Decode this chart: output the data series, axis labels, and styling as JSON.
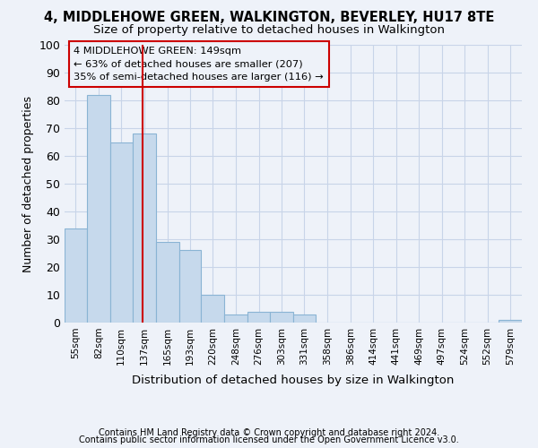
{
  "title": "4, MIDDLEHOWE GREEN, WALKINGTON, BEVERLEY, HU17 8TE",
  "subtitle": "Size of property relative to detached houses in Walkington",
  "xlabel": "Distribution of detached houses by size in Walkington",
  "ylabel": "Number of detached properties",
  "footer_line1": "Contains HM Land Registry data © Crown copyright and database right 2024.",
  "footer_line2": "Contains public sector information licensed under the Open Government Licence v3.0.",
  "bar_edges": [
    55,
    82,
    110,
    137,
    165,
    193,
    220,
    248,
    276,
    303,
    331,
    358,
    386,
    414,
    441,
    469,
    497,
    524,
    552,
    579,
    607
  ],
  "bar_heights": [
    34,
    82,
    65,
    68,
    29,
    26,
    10,
    3,
    4,
    4,
    3,
    0,
    0,
    0,
    0,
    0,
    0,
    0,
    0,
    1,
    0
  ],
  "bar_color": "#c6d9ec",
  "bar_edge_color": "#8ab4d4",
  "grid_color": "#c8d4e8",
  "vline_x": 149,
  "vline_color": "#cc0000",
  "annotation_line1": "4 MIDDLEHOWE GREEN: 149sqm",
  "annotation_line2": "← 63% of detached houses are smaller (207)",
  "annotation_line3": "35% of semi-detached houses are larger (116) →",
  "annotation_box_color": "#cc0000",
  "ylim": [
    0,
    100
  ],
  "yticks": [
    0,
    10,
    20,
    30,
    40,
    50,
    60,
    70,
    80,
    90,
    100
  ],
  "background_color": "#eef2f9"
}
